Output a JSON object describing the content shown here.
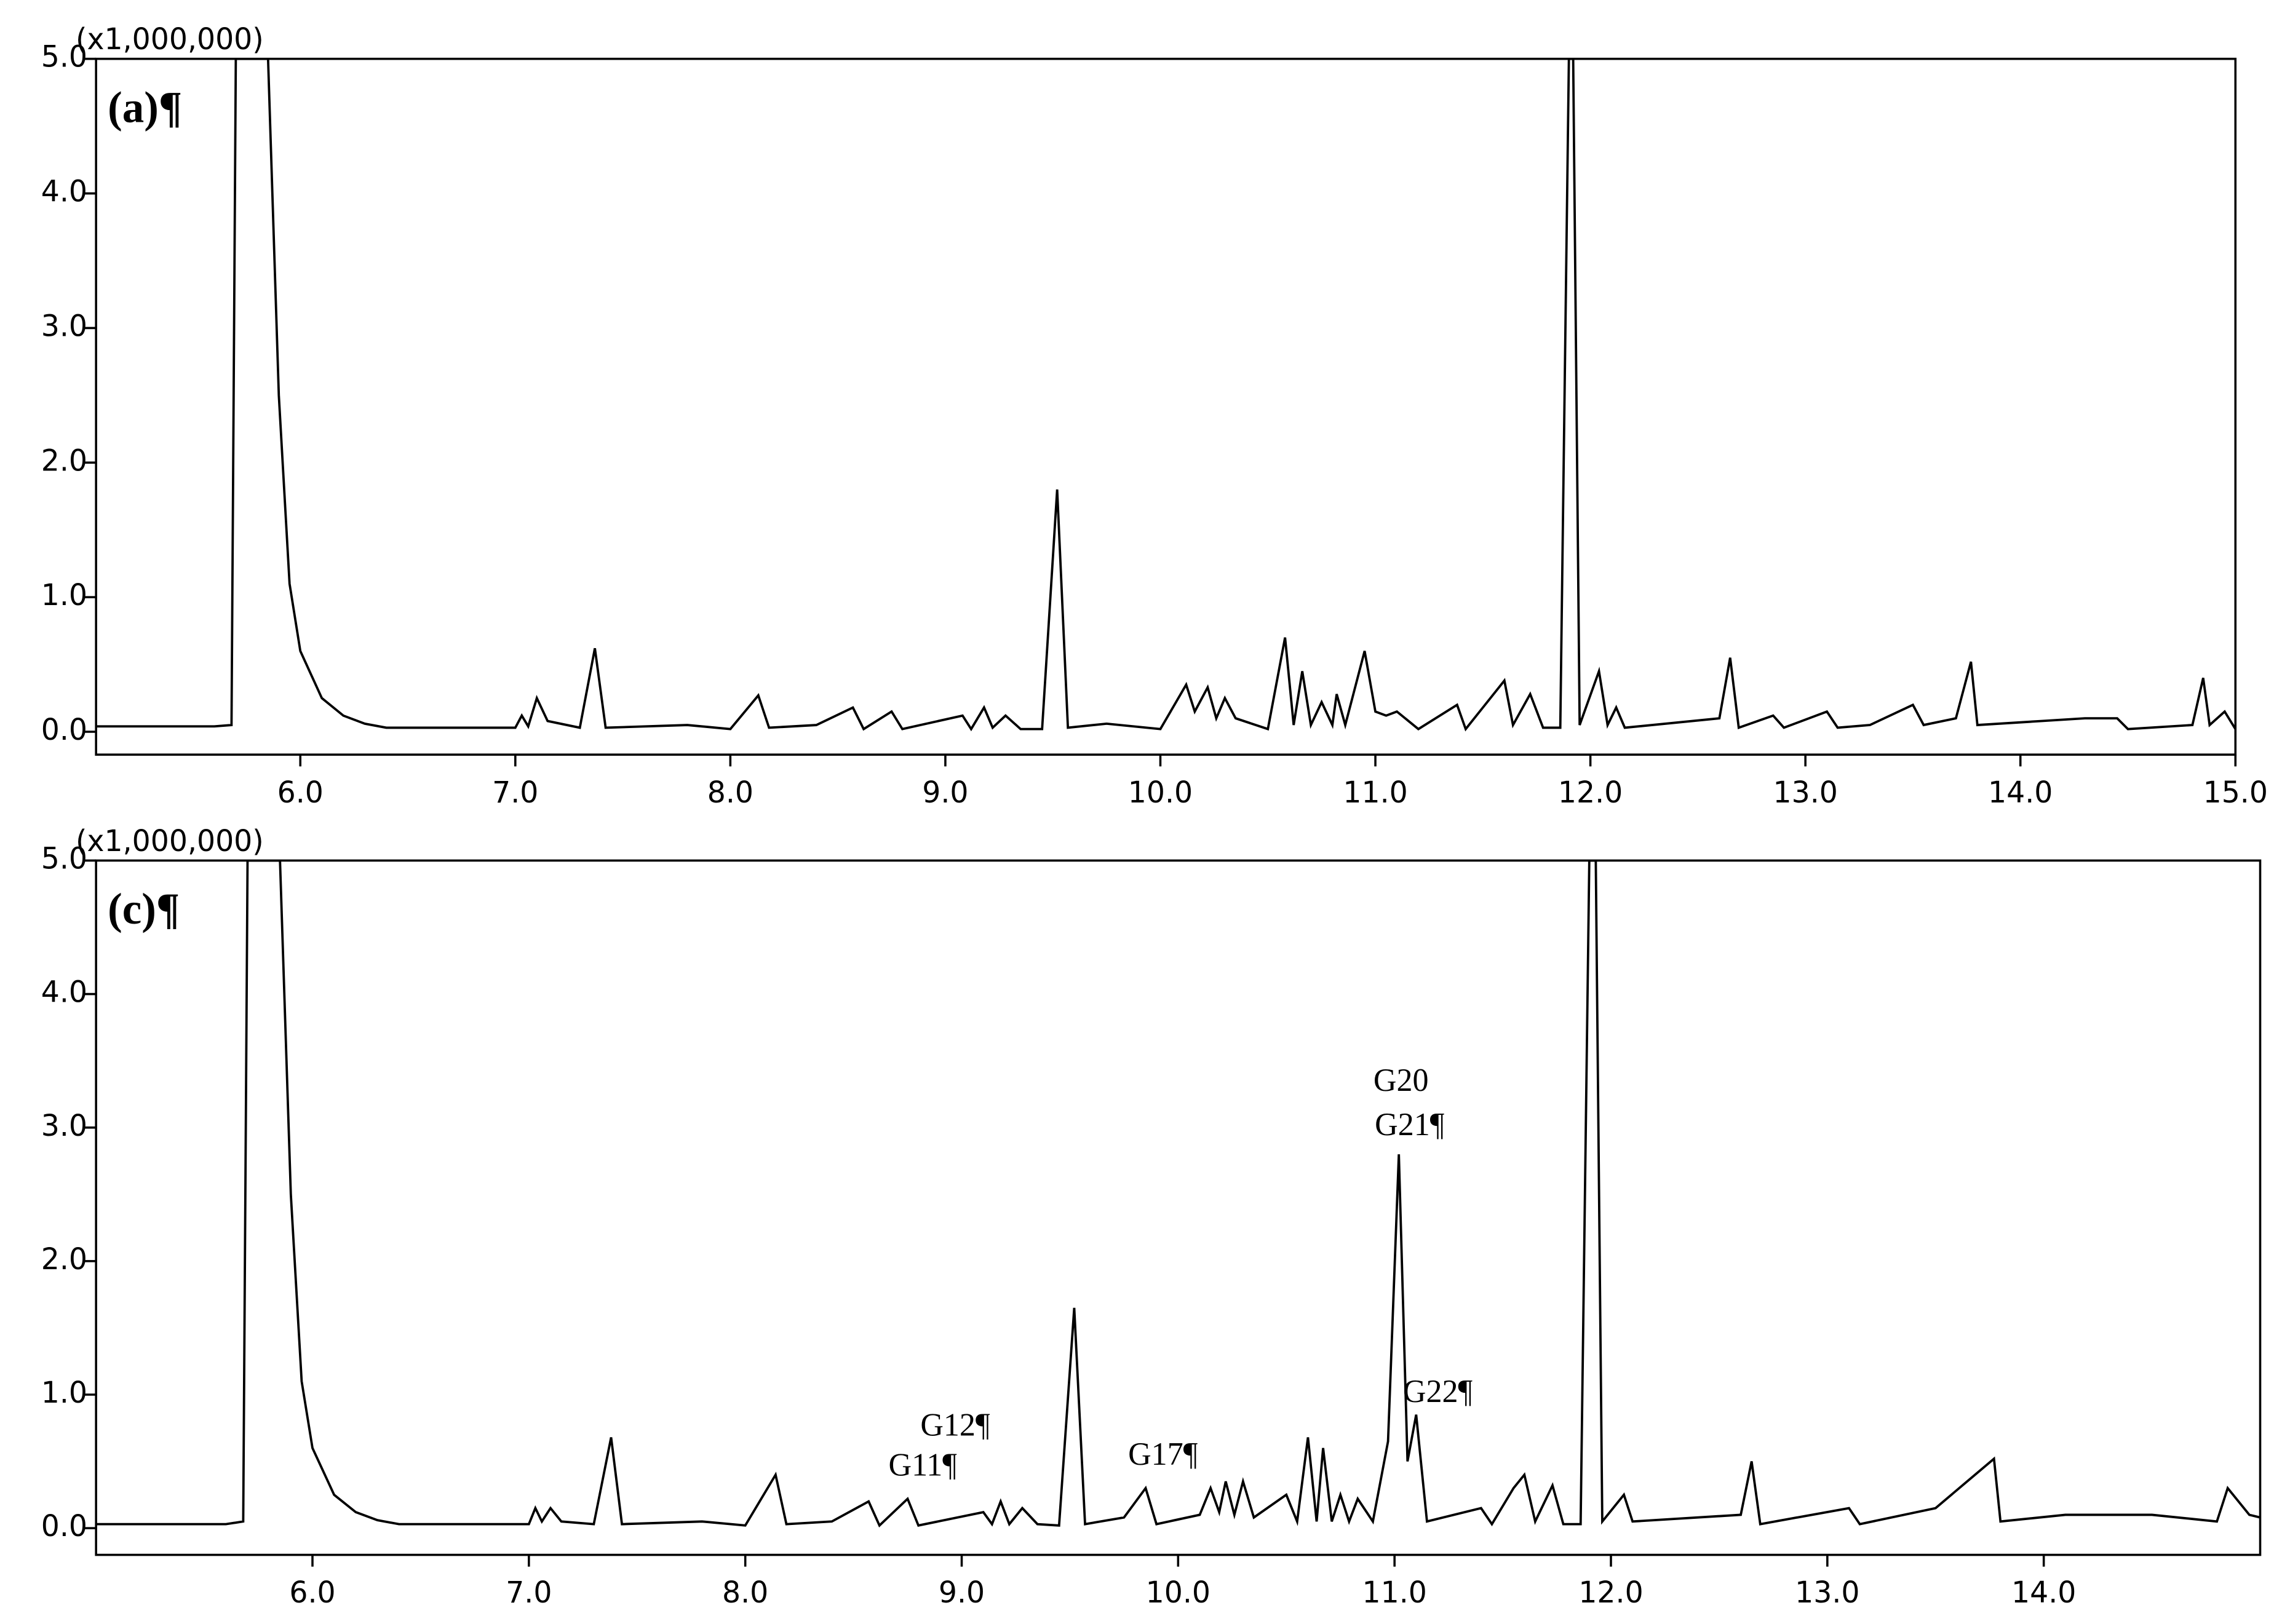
{
  "chart_data": [
    {
      "type": "line",
      "title": "(a)¶",
      "ylabel": "(x1,000,000)",
      "color": "#000000",
      "x": [
        5.05,
        5.6,
        5.68,
        5.7,
        5.85,
        5.9,
        5.95,
        6.0,
        6.1,
        6.2,
        6.3,
        6.4,
        7.0,
        7.03,
        7.06,
        7.1,
        7.15,
        7.3,
        7.37,
        7.42,
        7.8,
        8.0,
        8.13,
        8.18,
        8.4,
        8.57,
        8.62,
        8.75,
        8.8,
        9.08,
        9.12,
        9.18,
        9.22,
        9.28,
        9.35,
        9.45,
        9.52,
        9.57,
        9.75,
        10.0,
        10.12,
        10.16,
        10.22,
        10.26,
        10.3,
        10.35,
        10.5,
        10.58,
        10.62,
        10.66,
        10.7,
        10.75,
        10.8,
        10.82,
        10.86,
        10.95,
        11.0,
        11.05,
        11.1,
        11.2,
        11.38,
        11.42,
        11.56,
        11.6,
        11.64,
        11.72,
        11.78,
        11.86,
        11.9,
        11.92,
        11.95,
        12.04,
        12.08,
        12.12,
        12.16,
        12.6,
        12.65,
        12.69,
        12.85,
        12.9,
        13.1,
        13.15,
        13.3,
        13.5,
        13.55,
        13.7,
        13.77,
        13.8,
        14.1,
        14.3,
        14.45,
        14.5,
        14.8,
        14.85,
        14.88,
        14.95,
        15.0
      ],
      "values": [
        0.04,
        0.04,
        0.05,
        5.0,
        5.0,
        2.5,
        1.1,
        0.6,
        0.25,
        0.12,
        0.06,
        0.03,
        0.03,
        0.12,
        0.04,
        0.25,
        0.08,
        0.03,
        0.62,
        0.03,
        0.05,
        0.02,
        0.27,
        0.03,
        0.05,
        0.18,
        0.02,
        0.15,
        0.02,
        0.12,
        0.02,
        0.18,
        0.03,
        0.12,
        0.02,
        0.02,
        1.8,
        0.03,
        0.06,
        0.02,
        0.35,
        0.15,
        0.33,
        0.1,
        0.25,
        0.1,
        0.02,
        0.7,
        0.05,
        0.45,
        0.05,
        0.22,
        0.05,
        0.28,
        0.05,
        0.6,
        0.15,
        0.12,
        0.15,
        0.02,
        0.2,
        0.02,
        0.3,
        0.38,
        0.05,
        0.28,
        0.03,
        0.03,
        5.0,
        5.0,
        0.05,
        0.45,
        0.05,
        0.18,
        0.03,
        0.1,
        0.55,
        0.03,
        0.12,
        0.03,
        0.15,
        0.03,
        0.05,
        0.2,
        0.05,
        0.1,
        0.52,
        0.05,
        0.08,
        0.1,
        0.1,
        0.02,
        0.05,
        0.4,
        0.05,
        0.15,
        0.02
      ],
      "xlim": [
        5.05,
        15.0
      ],
      "xticks": [
        {
          "value": 6,
          "label": "6.0"
        },
        {
          "value": 7,
          "label": "7.0"
        },
        {
          "value": 8,
          "label": "8.0"
        },
        {
          "value": 9,
          "label": "9.0"
        },
        {
          "value": 10,
          "label": "10.0"
        },
        {
          "value": 11,
          "label": "11.0"
        },
        {
          "value": 12,
          "label": "12.0"
        },
        {
          "value": 13,
          "label": "13.0"
        },
        {
          "value": 14,
          "label": "14.0"
        },
        {
          "value": 15,
          "label": "15.0"
        }
      ],
      "ylim": [
        -0.17,
        5.0
      ],
      "yticks": [
        {
          "value": 0,
          "label": "0.0"
        },
        {
          "value": 1,
          "label": "1.0"
        },
        {
          "value": 2,
          "label": "2.0"
        },
        {
          "value": 3,
          "label": "3.0"
        },
        {
          "value": 4,
          "label": "4.0"
        },
        {
          "value": 5,
          "label": "5.0"
        }
      ]
    },
    {
      "type": "line",
      "title": "(c)¶",
      "ylabel": "(x1,000,000)",
      "color": "#000000",
      "x": [
        5.0,
        5.6,
        5.68,
        5.7,
        5.85,
        5.9,
        5.95,
        6.0,
        6.1,
        6.2,
        6.3,
        6.4,
        7.0,
        7.03,
        7.06,
        7.1,
        7.15,
        7.3,
        7.38,
        7.43,
        7.8,
        8.0,
        8.14,
        8.19,
        8.4,
        8.57,
        8.62,
        8.75,
        8.8,
        9.1,
        9.14,
        9.18,
        9.22,
        9.28,
        9.35,
        9.45,
        9.52,
        9.57,
        9.75,
        9.85,
        9.9,
        10.1,
        10.15,
        10.19,
        10.22,
        10.26,
        10.3,
        10.35,
        10.5,
        10.55,
        10.6,
        10.64,
        10.67,
        10.71,
        10.75,
        10.79,
        10.83,
        10.9,
        10.97,
        11.02,
        11.06,
        11.1,
        11.15,
        11.4,
        11.45,
        11.55,
        11.6,
        11.65,
        11.73,
        11.78,
        11.86,
        11.9,
        11.93,
        11.96,
        12.06,
        12.1,
        12.6,
        12.65,
        12.69,
        13.1,
        13.15,
        13.5,
        13.77,
        13.8,
        14.1,
        14.5,
        14.8,
        14.85,
        14.95,
        15.0
      ],
      "values": [
        0.03,
        0.03,
        0.05,
        5.0,
        5.0,
        2.5,
        1.1,
        0.6,
        0.25,
        0.12,
        0.06,
        0.03,
        0.03,
        0.15,
        0.05,
        0.15,
        0.05,
        0.03,
        0.68,
        0.03,
        0.05,
        0.02,
        0.4,
        0.03,
        0.05,
        0.2,
        0.02,
        0.22,
        0.02,
        0.12,
        0.03,
        0.2,
        0.03,
        0.15,
        0.03,
        0.02,
        1.65,
        0.03,
        0.08,
        0.3,
        0.03,
        0.1,
        0.3,
        0.12,
        0.35,
        0.1,
        0.35,
        0.08,
        0.25,
        0.05,
        0.68,
        0.05,
        0.6,
        0.05,
        0.25,
        0.05,
        0.22,
        0.05,
        0.65,
        2.8,
        0.5,
        0.85,
        0.05,
        0.15,
        0.03,
        0.3,
        0.4,
        0.05,
        0.32,
        0.03,
        0.03,
        5.0,
        5.0,
        0.05,
        0.25,
        0.05,
        0.1,
        0.5,
        0.03,
        0.15,
        0.03,
        0.15,
        0.52,
        0.05,
        0.1,
        0.1,
        0.05,
        0.3,
        0.1,
        0.08
      ],
      "xlim": [
        5.0,
        15.0
      ],
      "xticks": [
        {
          "value": 6,
          "label": "6.0"
        },
        {
          "value": 7,
          "label": "7.0"
        },
        {
          "value": 8,
          "label": "8.0"
        },
        {
          "value": 9,
          "label": "9.0"
        },
        {
          "value": 10,
          "label": "10.0"
        },
        {
          "value": 11,
          "label": "11.0"
        },
        {
          "value": 12,
          "label": "12.0"
        },
        {
          "value": 13,
          "label": "13.0"
        },
        {
          "value": 14,
          "label": "14.0"
        }
      ],
      "ylim": [
        -0.2,
        5.0
      ],
      "yticks": [
        {
          "value": 0,
          "label": "0.0"
        },
        {
          "value": 1,
          "label": "1.0"
        },
        {
          "value": 2,
          "label": "2.0"
        },
        {
          "value": 3,
          "label": "3.0"
        },
        {
          "value": 4,
          "label": "4.0"
        },
        {
          "value": 5,
          "label": "5.0"
        }
      ],
      "annotations": [
        {
          "text": "G20",
          "x": 11.03,
          "y": 3.33
        },
        {
          "text": "G21¶",
          "x": 11.07,
          "y": 3.0
        },
        {
          "text": "G22¶",
          "x": 11.2,
          "y": 1.0
        },
        {
          "text": "G12¶",
          "x": 8.97,
          "y": 0.75
        },
        {
          "text": "G11¶",
          "x": 8.82,
          "y": 0.45
        },
        {
          "text": "G17¶",
          "x": 9.93,
          "y": 0.53
        }
      ]
    }
  ]
}
